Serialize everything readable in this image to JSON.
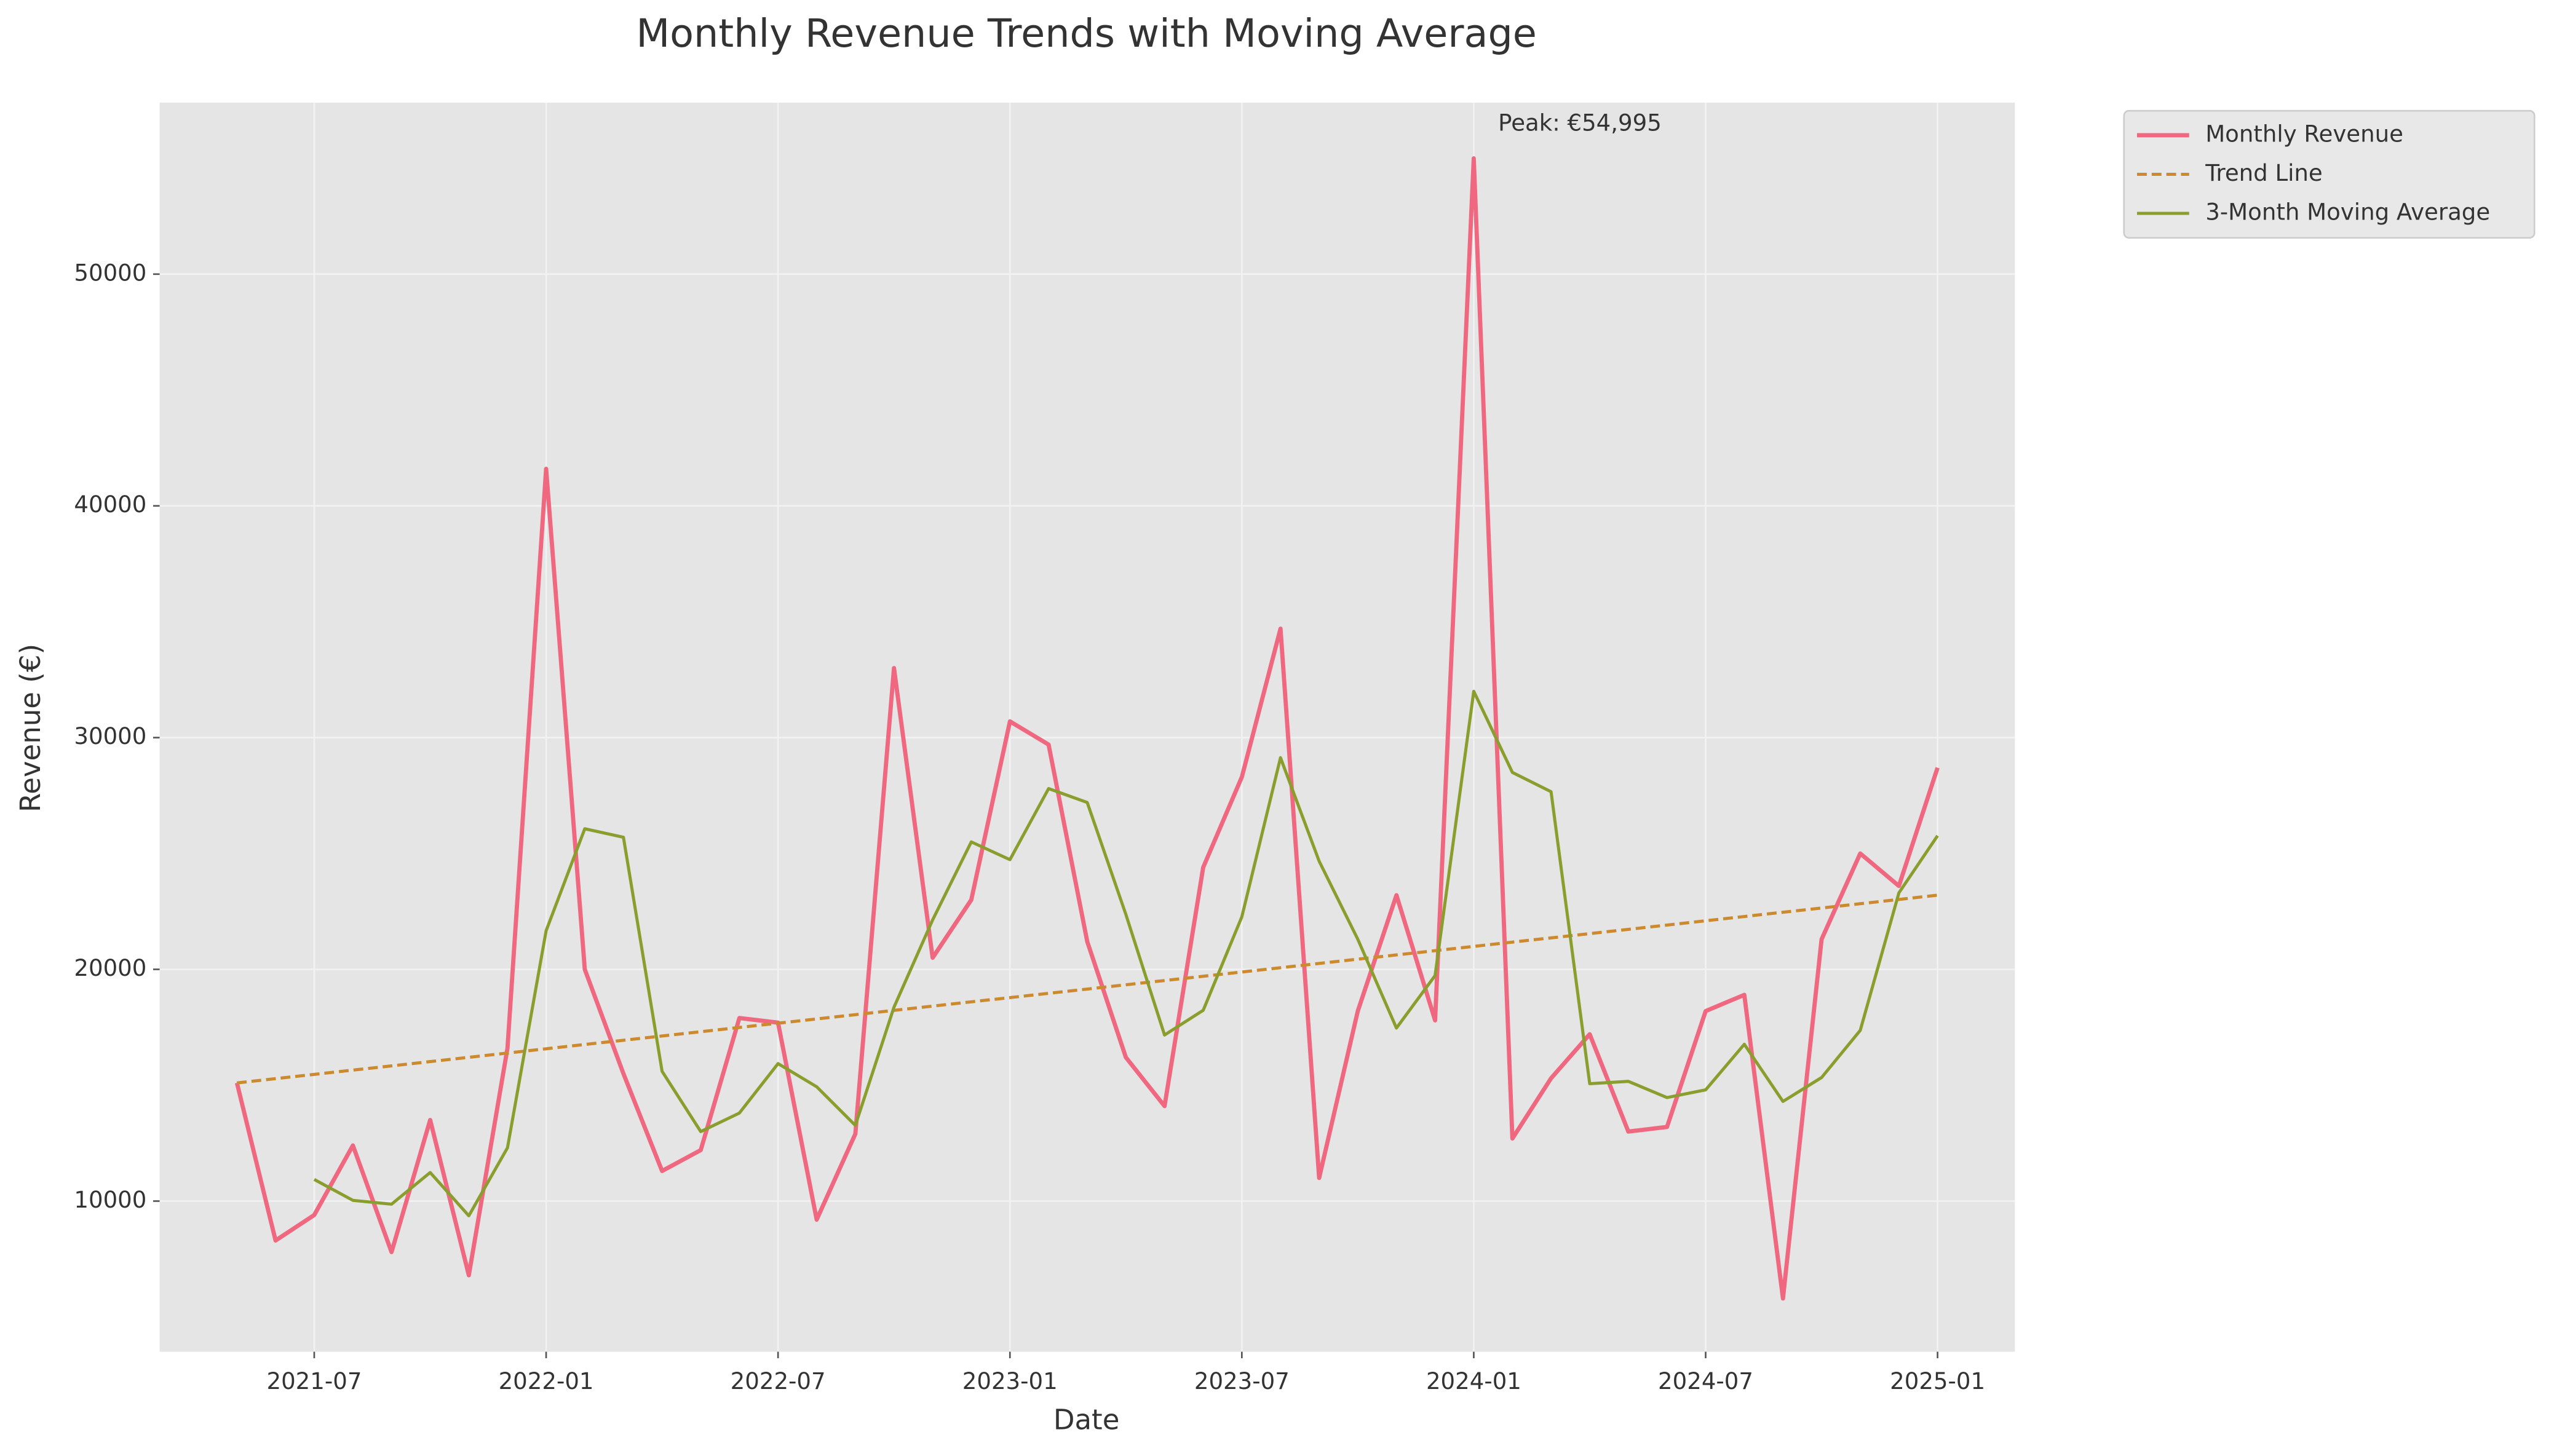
{
  "chart_data": {
    "type": "line",
    "title": "Monthly Revenue Trends with Moving Average",
    "xlabel": "Date",
    "ylabel": "Revenue (€)",
    "x": [
      "2021-05",
      "2021-06",
      "2021-07",
      "2021-08",
      "2021-09",
      "2021-10",
      "2021-11",
      "2021-12",
      "2022-01",
      "2022-02",
      "2022-03",
      "2022-04",
      "2022-05",
      "2022-06",
      "2022-07",
      "2022-08",
      "2022-09",
      "2022-10",
      "2022-11",
      "2022-12",
      "2023-01",
      "2023-02",
      "2023-03",
      "2023-04",
      "2023-05",
      "2023-06",
      "2023-07",
      "2023-08",
      "2023-09",
      "2023-10",
      "2023-11",
      "2023-12",
      "2024-01",
      "2024-02",
      "2024-03",
      "2024-04",
      "2024-05",
      "2024-06",
      "2024-07",
      "2024-08",
      "2024-09",
      "2024-10",
      "2024-11",
      "2024-12",
      "2025-01"
    ],
    "series": [
      {
        "name": "Monthly Revenue",
        "color": "#f0687f",
        "style": "solid",
        "values": [
          15100,
          8300,
          9400,
          12400,
          7800,
          13500,
          6800,
          16600,
          41600,
          20000,
          15500,
          11300,
          12200,
          17900,
          17700,
          9200,
          12900,
          33000,
          20500,
          23000,
          30700,
          29700,
          21200,
          16200,
          14100,
          24400,
          28300,
          34700,
          11000,
          18200,
          23200,
          17800,
          54995,
          12700,
          15300,
          17200,
          13000,
          13200,
          18200,
          18900,
          5800,
          21300,
          25000,
          23600,
          28700
        ]
      },
      {
        "name": "Trend Line",
        "color": "#cc8a2c",
        "style": "dashed",
        "values": [
          15100,
          15284,
          15468,
          15652,
          15836,
          16020,
          16205,
          16389,
          16573,
          16757,
          16941,
          17125,
          17309,
          17493,
          17677,
          17861,
          18045,
          18230,
          18414,
          18598,
          18782,
          18966,
          19150,
          19334,
          19518,
          19702,
          19886,
          20070,
          20255,
          20439,
          20623,
          20807,
          20991,
          21175,
          21359,
          21543,
          21727,
          21911,
          22095,
          22280,
          22464,
          22648,
          22832,
          23016,
          23200
        ]
      },
      {
        "name": "3-Month Moving Average",
        "color": "#8a9e2e",
        "style": "solid",
        "values": [
          null,
          null,
          10933,
          10033,
          9867,
          11233,
          9367,
          12300,
          21667,
          26067,
          25700,
          15600,
          13000,
          13800,
          15933,
          14933,
          13267,
          18367,
          22133,
          25500,
          24733,
          27800,
          27200,
          22367,
          17167,
          18233,
          22267,
          29133,
          24667,
          21300,
          17467,
          19733,
          31998,
          28498,
          27665,
          15067,
          15167,
          14467,
          14800,
          16767,
          14300,
          15333,
          17367,
          23300,
          25767
        ]
      }
    ],
    "annotations": [
      {
        "text": "Peak: €54,995",
        "series": 0,
        "index": 32
      }
    ],
    "xlim": [
      "2021-03",
      "2025-03"
    ],
    "xticks": [
      "2021-07",
      "2022-01",
      "2022-07",
      "2023-01",
      "2023-07",
      "2024-01",
      "2024-07",
      "2025-01"
    ],
    "ylim": [
      3500,
      57400
    ],
    "yticks": [
      10000,
      20000,
      30000,
      40000,
      50000
    ],
    "grid": true,
    "legend": "outside upper right"
  }
}
